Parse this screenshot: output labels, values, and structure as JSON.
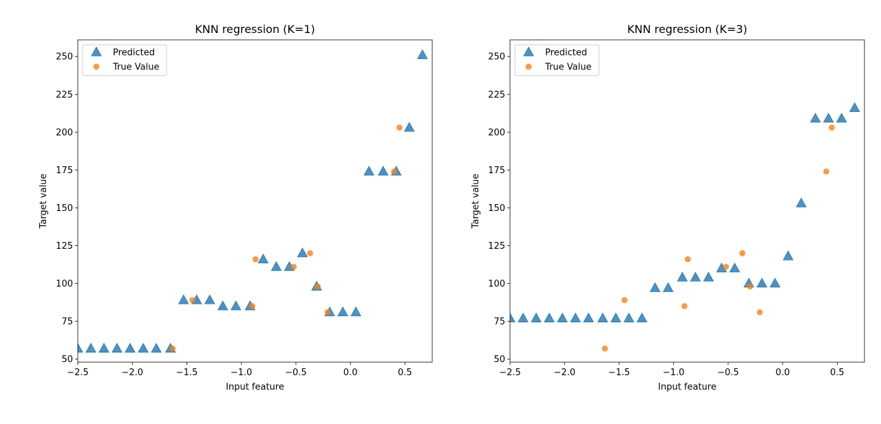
{
  "chart_data": [
    {
      "type": "scatter",
      "title": "KNN regression (K=1)",
      "xlabel": "Input feature",
      "ylabel": "Target value",
      "xlim": [
        -2.5,
        0.75
      ],
      "ylim": [
        48,
        261
      ],
      "xticks": [
        -2.5,
        -2.0,
        -1.5,
        -1.0,
        -0.5,
        0.0,
        0.5
      ],
      "xtick_labels": [
        "−2.5",
        "−2.0",
        "−1.5",
        "−1.0",
        "−0.5",
        "0.0",
        "0.5"
      ],
      "yticks": [
        50,
        75,
        100,
        125,
        150,
        175,
        200,
        225,
        250
      ],
      "ytick_labels": [
        "50",
        "75",
        "100",
        "125",
        "150",
        "175",
        "200",
        "225",
        "250"
      ],
      "legend": {
        "position": "top-left",
        "entries": [
          "Predicted",
          "True Value"
        ]
      },
      "series": [
        {
          "name": "Predicted",
          "marker": "triangle",
          "color": "#1f77b4",
          "x": [
            -2.5,
            -2.38,
            -2.26,
            -2.14,
            -2.02,
            -1.9,
            -1.78,
            -1.65,
            -1.53,
            -1.41,
            -1.29,
            -1.17,
            -1.05,
            -0.92,
            -0.8,
            -0.68,
            -0.56,
            -0.44,
            -0.31,
            -0.19,
            -0.07,
            0.05,
            0.17,
            0.3,
            0.42,
            0.54,
            0.66
          ],
          "y": [
            57,
            57,
            57,
            57,
            57,
            57,
            57,
            57,
            89,
            89,
            89,
            85,
            85,
            85,
            116,
            111,
            111,
            120,
            98,
            81,
            81,
            81,
            174,
            174,
            174,
            203,
            251
          ]
        },
        {
          "name": "True Value",
          "marker": "circle",
          "color": "#ff7f0e",
          "x": [
            -1.63,
            -1.45,
            -0.9,
            -0.87,
            -0.52,
            -0.37,
            -0.3,
            -0.21,
            0.4,
            0.45
          ],
          "y": [
            57,
            89,
            85,
            116,
            111,
            120,
            98,
            81,
            174,
            203
          ]
        }
      ]
    },
    {
      "type": "scatter",
      "title": "KNN regression (K=3)",
      "xlabel": "Input feature",
      "ylabel": "Target value",
      "xlim": [
        -2.5,
        0.75
      ],
      "ylim": [
        48,
        261
      ],
      "xticks": [
        -2.5,
        -2.0,
        -1.5,
        -1.0,
        -0.5,
        0.0,
        0.5
      ],
      "xtick_labels": [
        "−2.5",
        "−2.0",
        "−1.5",
        "−1.0",
        "−0.5",
        "0.0",
        "0.5"
      ],
      "yticks": [
        50,
        75,
        100,
        125,
        150,
        175,
        200,
        225,
        250
      ],
      "ytick_labels": [
        "50",
        "75",
        "100",
        "125",
        "150",
        "175",
        "200",
        "225",
        "250"
      ],
      "legend": {
        "position": "top-left",
        "entries": [
          "Predicted",
          "True Value"
        ]
      },
      "series": [
        {
          "name": "Predicted",
          "marker": "triangle",
          "color": "#1f77b4",
          "x": [
            -2.5,
            -2.38,
            -2.26,
            -2.14,
            -2.02,
            -1.9,
            -1.78,
            -1.65,
            -1.53,
            -1.41,
            -1.29,
            -1.17,
            -1.05,
            -0.92,
            -0.8,
            -0.68,
            -0.56,
            -0.44,
            -0.31,
            -0.19,
            -0.07,
            0.05,
            0.17,
            0.3,
            0.42,
            0.54,
            0.66
          ],
          "y": [
            77,
            77,
            77,
            77,
            77,
            77,
            77,
            77,
            77,
            77,
            77,
            97,
            97,
            104,
            104,
            104,
            110,
            110,
            100,
            100,
            100,
            118,
            153,
            209,
            209,
            209,
            216
          ]
        },
        {
          "name": "True Value",
          "marker": "circle",
          "color": "#ff7f0e",
          "x": [
            -1.63,
            -1.45,
            -0.9,
            -0.87,
            -0.52,
            -0.37,
            -0.3,
            -0.21,
            0.4,
            0.45
          ],
          "y": [
            57,
            89,
            85,
            116,
            111,
            120,
            98,
            81,
            174,
            203
          ]
        }
      ]
    }
  ]
}
